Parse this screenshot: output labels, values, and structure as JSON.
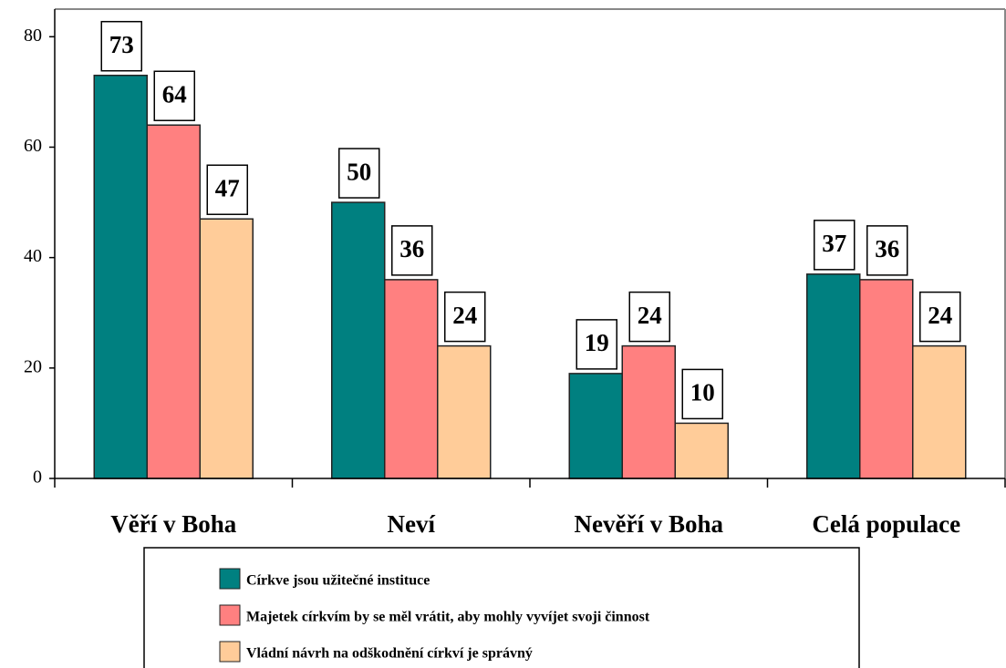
{
  "chart_data": {
    "type": "bar",
    "categories": [
      "Věří v Boha",
      "Neví",
      "Nevěří v Boha",
      "Celá populace"
    ],
    "series": [
      {
        "name": "Církve jsou užitečné instituce",
        "color": "#008080",
        "values": [
          73,
          50,
          19,
          37
        ]
      },
      {
        "name": "Majetek církvím by se měl vrátit, aby mohly vyvíjet svoji činnost",
        "color": "#ff8080",
        "values": [
          64,
          36,
          24,
          36
        ]
      },
      {
        "name": "Vládní návrh na odškodnění církví je správný",
        "color": "#ffcc99",
        "values": [
          47,
          24,
          10,
          24
        ]
      }
    ],
    "ylim": [
      0,
      85
    ],
    "yticks": [
      0,
      20,
      40,
      60,
      80
    ],
    "legend": "bottom"
  }
}
